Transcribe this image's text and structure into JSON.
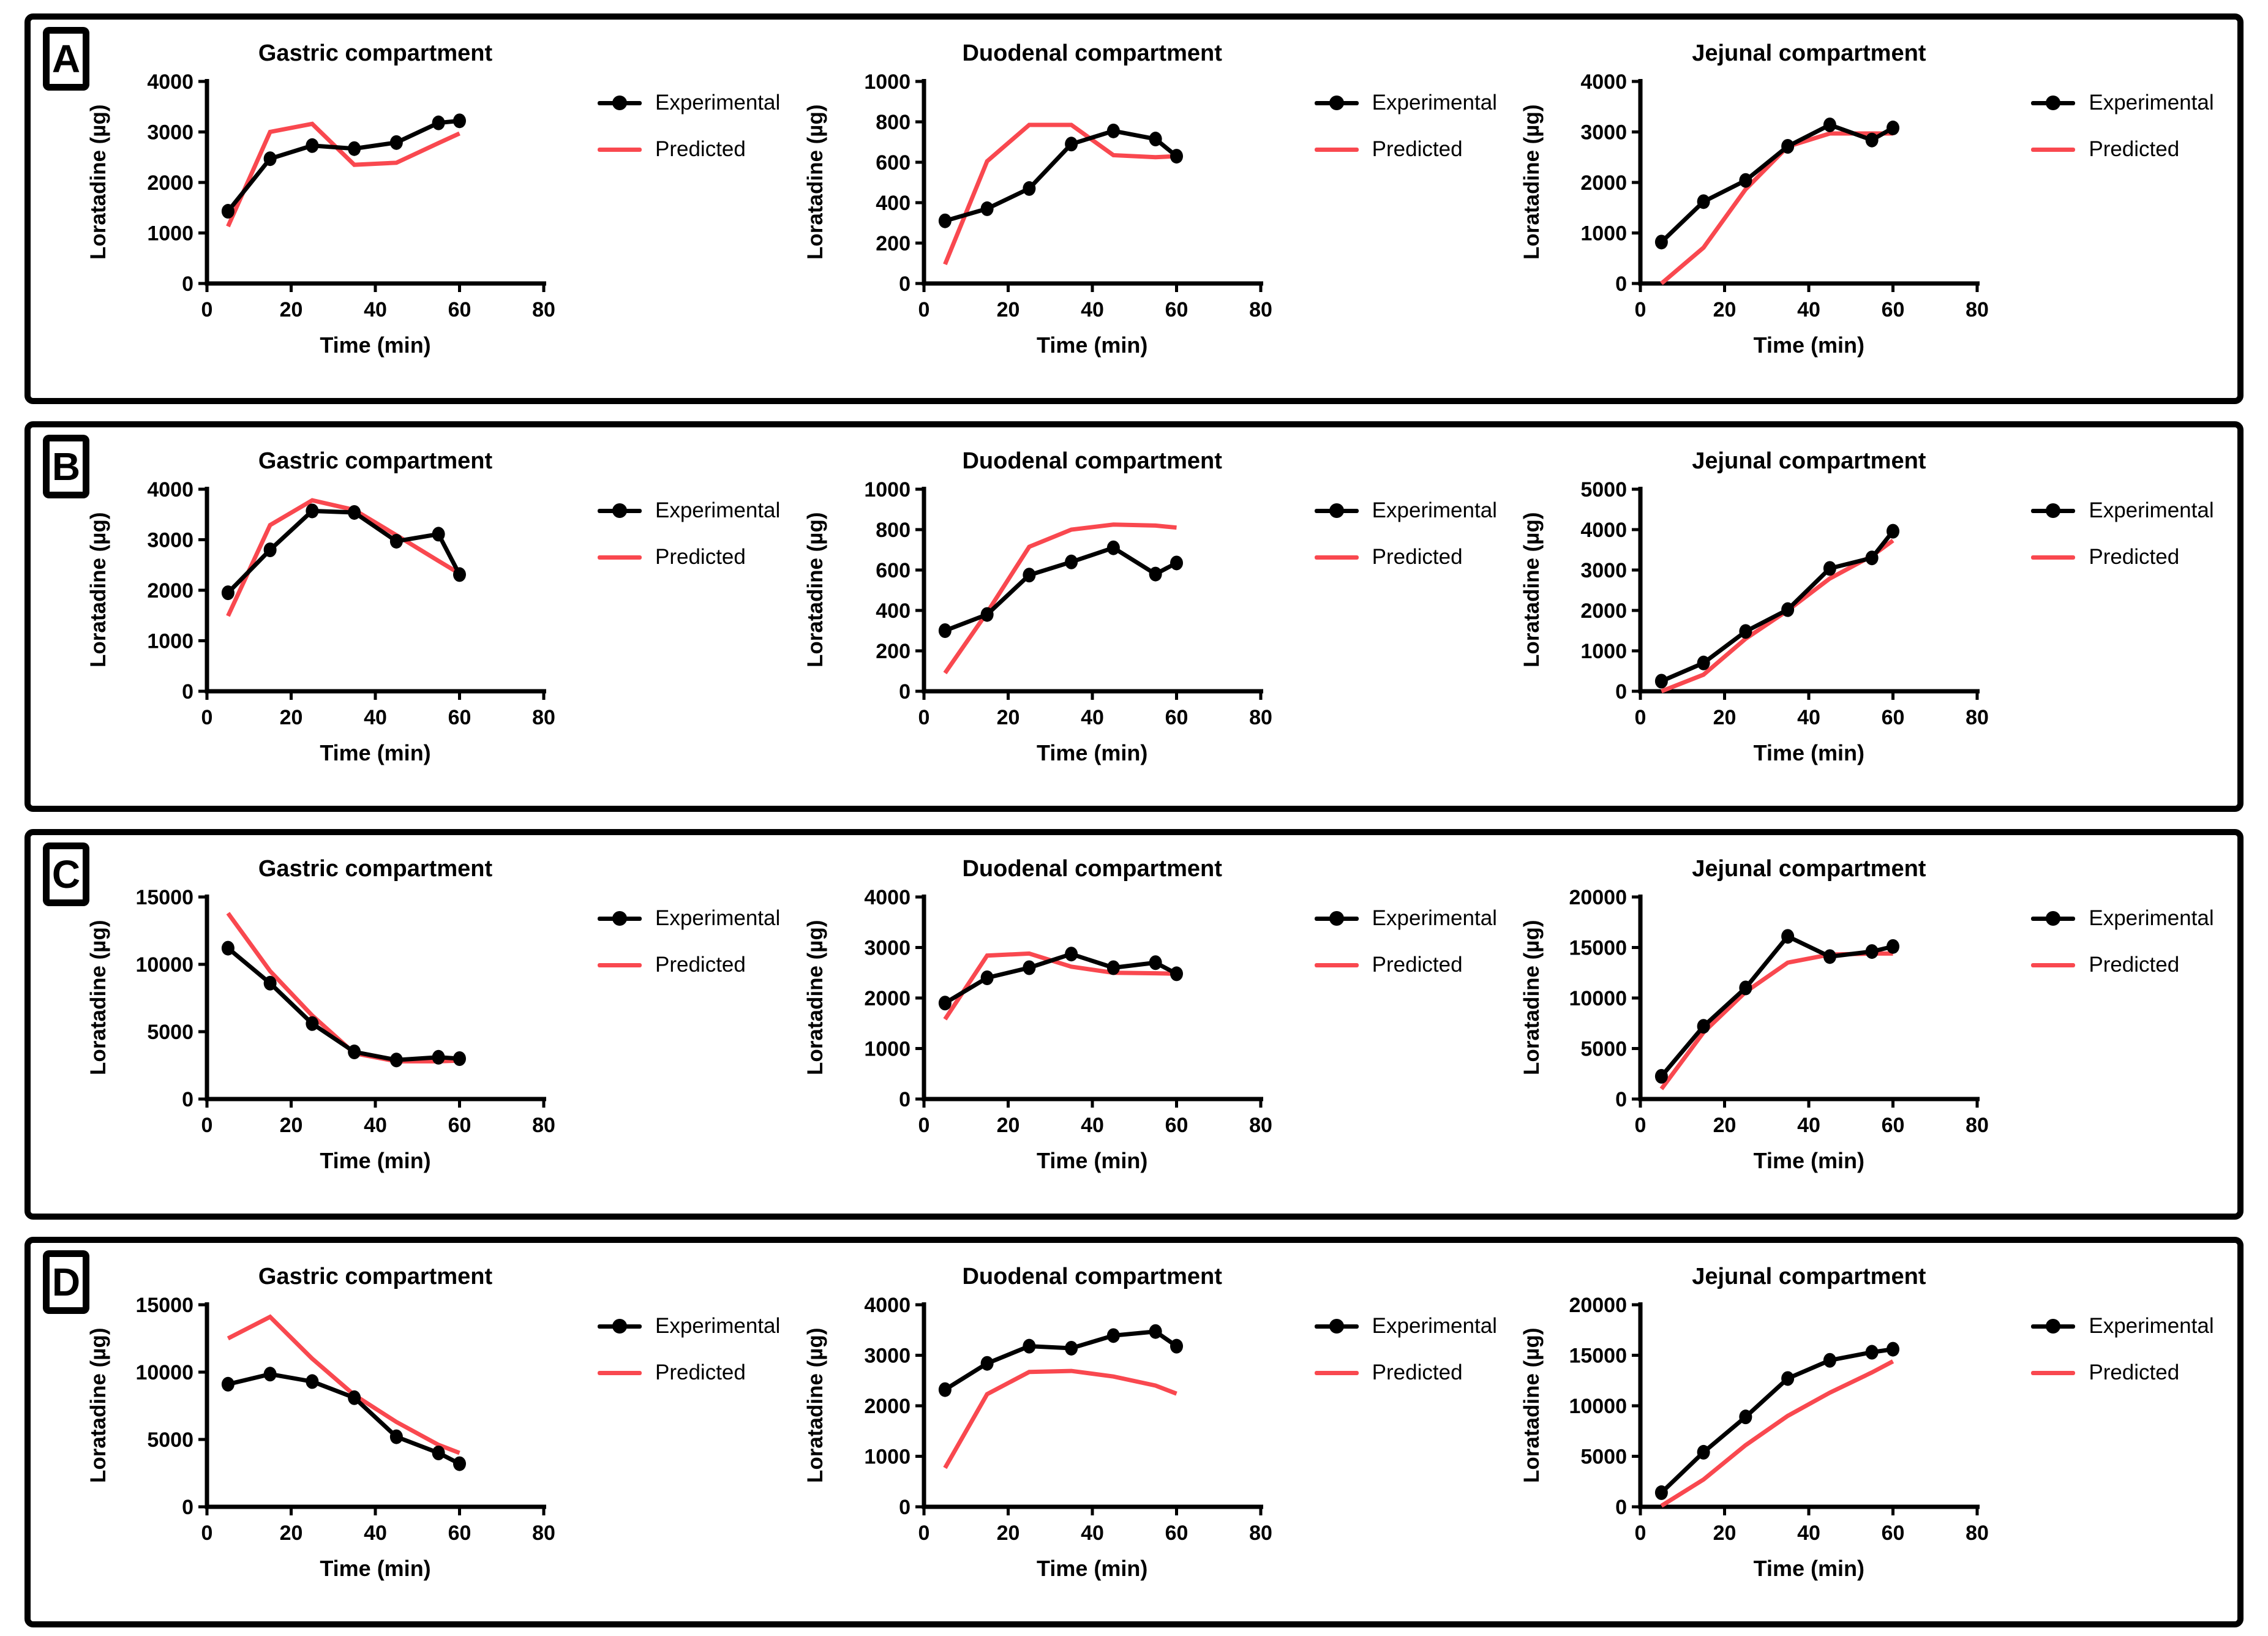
{
  "figure": {
    "background": "#FFFFFF",
    "panel_border_color": "#000000",
    "experimental_color": "#000000",
    "predicted_color": "#F9484F"
  },
  "panels": [
    {
      "label": "A"
    },
    {
      "label": "B"
    },
    {
      "label": "C"
    },
    {
      "label": "D"
    }
  ],
  "chart_data": [
    {
      "type": "line",
      "panel": "A",
      "title": "Gastric compartment",
      "xlabel": "Time (min)",
      "ylabel": "Loratadine (µg)",
      "xlim": [
        0,
        80
      ],
      "xticks": [
        0,
        20,
        40,
        60,
        80
      ],
      "ylim": [
        0,
        4000
      ],
      "yticks": [
        0,
        1000,
        2000,
        3000,
        4000
      ],
      "x": [
        5,
        15,
        25,
        35,
        45,
        55,
        60
      ],
      "legend_position": "right",
      "grid": false,
      "series": [
        {
          "name": "Experimental",
          "color": "#000000",
          "marker": "circle",
          "values": [
            1430,
            2470,
            2730,
            2670,
            2790,
            3180,
            3220
          ]
        },
        {
          "name": "Predicted",
          "color": "#F9484F",
          "marker": "none",
          "values": [
            1130,
            3000,
            3160,
            2350,
            2390,
            2780,
            2970
          ]
        }
      ]
    },
    {
      "type": "line",
      "panel": "A",
      "title": "Duodenal compartment",
      "xlabel": "Time (min)",
      "ylabel": "Loratadine (µg)",
      "xlim": [
        0,
        80
      ],
      "xticks": [
        0,
        20,
        40,
        60,
        80
      ],
      "ylim": [
        0,
        1000
      ],
      "yticks": [
        0,
        200,
        400,
        600,
        800,
        1000
      ],
      "x": [
        5,
        15,
        25,
        35,
        45,
        55,
        60
      ],
      "legend_position": "right",
      "grid": false,
      "series": [
        {
          "name": "Experimental",
          "color": "#000000",
          "marker": "circle",
          "values": [
            310,
            370,
            470,
            690,
            755,
            715,
            630
          ]
        },
        {
          "name": "Predicted",
          "color": "#F9484F",
          "marker": "none",
          "values": [
            95,
            605,
            785,
            785,
            635,
            625,
            630
          ]
        }
      ]
    },
    {
      "type": "line",
      "panel": "A",
      "title": "Jejunal compartment",
      "xlabel": "Time (min)",
      "ylabel": "Loratadine (µg)",
      "xlim": [
        0,
        80
      ],
      "xticks": [
        0,
        20,
        40,
        60,
        80
      ],
      "ylim": [
        0,
        4000
      ],
      "yticks": [
        0,
        1000,
        2000,
        3000,
        4000
      ],
      "x": [
        5,
        15,
        25,
        35,
        45,
        55,
        60
      ],
      "legend_position": "right",
      "grid": false,
      "series": [
        {
          "name": "Experimental",
          "color": "#000000",
          "marker": "circle",
          "values": [
            820,
            1620,
            2040,
            2715,
            3140,
            2840,
            3080
          ]
        },
        {
          "name": "Predicted",
          "color": "#F9484F",
          "marker": "none",
          "values": [
            0,
            710,
            1865,
            2710,
            2970,
            2970,
            2970
          ]
        }
      ]
    },
    {
      "type": "line",
      "panel": "B",
      "title": "Gastric compartment",
      "xlabel": "Time (min)",
      "ylabel": "Loratadine (µg)",
      "xlim": [
        0,
        80
      ],
      "xticks": [
        0,
        20,
        40,
        60,
        80
      ],
      "ylim": [
        0,
        4000
      ],
      "yticks": [
        0,
        1000,
        2000,
        3000,
        4000
      ],
      "x": [
        5,
        15,
        25,
        35,
        45,
        55,
        60
      ],
      "legend_position": "right",
      "grid": false,
      "series": [
        {
          "name": "Experimental",
          "color": "#000000",
          "marker": "circle",
          "values": [
            1950,
            2800,
            3570,
            3540,
            2970,
            3110,
            2310
          ]
        },
        {
          "name": "Predicted",
          "color": "#F9484F",
          "marker": "none",
          "values": [
            1490,
            3290,
            3780,
            3590,
            3090,
            2580,
            2330
          ]
        }
      ]
    },
    {
      "type": "line",
      "panel": "B",
      "title": "Duodenal compartment",
      "xlabel": "Time (min)",
      "ylabel": "Loratadine (µg)",
      "xlim": [
        0,
        80
      ],
      "xticks": [
        0,
        20,
        40,
        60,
        80
      ],
      "ylim": [
        0,
        1000
      ],
      "yticks": [
        0,
        200,
        400,
        600,
        800,
        1000
      ],
      "x": [
        5,
        15,
        25,
        35,
        45,
        55,
        60
      ],
      "legend_position": "right",
      "grid": false,
      "series": [
        {
          "name": "Experimental",
          "color": "#000000",
          "marker": "circle",
          "values": [
            300,
            380,
            575,
            640,
            710,
            580,
            635
          ]
        },
        {
          "name": "Predicted",
          "color": "#F9484F",
          "marker": "none",
          "values": [
            90,
            390,
            715,
            800,
            825,
            820,
            810
          ]
        }
      ]
    },
    {
      "type": "line",
      "panel": "B",
      "title": "Jejunal compartment",
      "xlabel": "Time (min)",
      "ylabel": "Loratadine (µg)",
      "xlim": [
        0,
        80
      ],
      "xticks": [
        0,
        20,
        40,
        60,
        80
      ],
      "ylim": [
        0,
        5000
      ],
      "yticks": [
        0,
        1000,
        2000,
        3000,
        4000,
        5000
      ],
      "x": [
        5,
        15,
        25,
        35,
        45,
        55,
        60
      ],
      "legend_position": "right",
      "grid": false,
      "series": [
        {
          "name": "Experimental",
          "color": "#000000",
          "marker": "circle",
          "values": [
            250,
            700,
            1480,
            2020,
            3040,
            3300,
            3960
          ]
        },
        {
          "name": "Predicted",
          "color": "#F9484F",
          "marker": "none",
          "values": [
            0,
            410,
            1300,
            2000,
            2790,
            3350,
            3730
          ]
        }
      ]
    },
    {
      "type": "line",
      "panel": "C",
      "title": "Gastric compartment",
      "xlabel": "Time (min)",
      "ylabel": "Loratadine (µg)",
      "xlim": [
        0,
        80
      ],
      "xticks": [
        0,
        20,
        40,
        60,
        80
      ],
      "ylim": [
        0,
        15000
      ],
      "yticks": [
        0,
        5000,
        10000,
        15000
      ],
      "x": [
        5,
        15,
        25,
        35,
        45,
        55,
        60
      ],
      "legend_position": "right",
      "grid": false,
      "series": [
        {
          "name": "Experimental",
          "color": "#000000",
          "marker": "circle",
          "values": [
            11200,
            8600,
            5600,
            3500,
            2900,
            3100,
            3000
          ]
        },
        {
          "name": "Predicted",
          "color": "#F9484F",
          "marker": "none",
          "values": [
            13800,
            9500,
            6200,
            3400,
            2800,
            2800,
            2850
          ]
        }
      ]
    },
    {
      "type": "line",
      "panel": "C",
      "title": "Duodenal compartment",
      "xlabel": "Time (min)",
      "ylabel": "Loratadine (µg)",
      "xlim": [
        0,
        80
      ],
      "xticks": [
        0,
        20,
        40,
        60,
        80
      ],
      "ylim": [
        0,
        4000
      ],
      "yticks": [
        0,
        1000,
        2000,
        3000,
        4000
      ],
      "x": [
        5,
        15,
        25,
        35,
        45,
        55,
        60
      ],
      "legend_position": "right",
      "grid": false,
      "series": [
        {
          "name": "Experimental",
          "color": "#000000",
          "marker": "circle",
          "values": [
            1900,
            2400,
            2600,
            2870,
            2600,
            2700,
            2480
          ]
        },
        {
          "name": "Predicted",
          "color": "#F9484F",
          "marker": "none",
          "values": [
            1580,
            2840,
            2880,
            2620,
            2500,
            2490,
            2480
          ]
        }
      ]
    },
    {
      "type": "line",
      "panel": "C",
      "title": "Jejunal compartment",
      "xlabel": "Time (min)",
      "ylabel": "Loratadine (µg)",
      "xlim": [
        0,
        80
      ],
      "xticks": [
        0,
        20,
        40,
        60,
        80
      ],
      "ylim": [
        0,
        20000
      ],
      "yticks": [
        0,
        5000,
        10000,
        15000,
        20000
      ],
      "x": [
        5,
        15,
        25,
        35,
        45,
        55,
        60
      ],
      "legend_position": "right",
      "grid": false,
      "series": [
        {
          "name": "Experimental",
          "color": "#000000",
          "marker": "circle",
          "values": [
            2250,
            7200,
            11000,
            16100,
            14100,
            14600,
            15100
          ]
        },
        {
          "name": "Predicted",
          "color": "#F9484F",
          "marker": "none",
          "values": [
            1000,
            6600,
            10600,
            13500,
            14300,
            14400,
            14400
          ]
        }
      ]
    },
    {
      "type": "line",
      "panel": "D",
      "title": "Gastric compartment",
      "xlabel": "Time (min)",
      "ylabel": "Loratadine (µg)",
      "xlim": [
        0,
        80
      ],
      "xticks": [
        0,
        20,
        40,
        60,
        80
      ],
      "ylim": [
        0,
        15000
      ],
      "yticks": [
        0,
        5000,
        10000,
        15000
      ],
      "x": [
        5,
        15,
        25,
        35,
        45,
        55,
        60
      ],
      "legend_position": "right",
      "grid": false,
      "series": [
        {
          "name": "Experimental",
          "color": "#000000",
          "marker": "circle",
          "values": [
            9100,
            9850,
            9300,
            8100,
            5200,
            4000,
            3200
          ]
        },
        {
          "name": "Predicted",
          "color": "#F9484F",
          "marker": "none",
          "values": [
            12500,
            14100,
            11000,
            8300,
            6300,
            4600,
            4000
          ]
        }
      ]
    },
    {
      "type": "line",
      "panel": "D",
      "title": "Duodenal compartment",
      "xlabel": "Time (min)",
      "ylabel": "Loratadine (µg)",
      "xlim": [
        0,
        80
      ],
      "xticks": [
        0,
        20,
        40,
        60,
        80
      ],
      "ylim": [
        0,
        4000
      ],
      "yticks": [
        0,
        1000,
        2000,
        3000,
        4000
      ],
      "x": [
        5,
        15,
        25,
        35,
        45,
        55,
        60
      ],
      "legend_position": "right",
      "grid": false,
      "series": [
        {
          "name": "Experimental",
          "color": "#000000",
          "marker": "circle",
          "values": [
            2320,
            2840,
            3180,
            3140,
            3390,
            3470,
            3180
          ]
        },
        {
          "name": "Predicted",
          "color": "#F9484F",
          "marker": "none",
          "values": [
            770,
            2230,
            2670,
            2690,
            2580,
            2400,
            2240
          ]
        }
      ]
    },
    {
      "type": "line",
      "panel": "D",
      "title": "Jejunal compartment",
      "xlabel": "Time (min)",
      "ylabel": "Loratadine (µg)",
      "xlim": [
        0,
        80
      ],
      "xticks": [
        0,
        20,
        40,
        60,
        80
      ],
      "ylim": [
        0,
        20000
      ],
      "yticks": [
        0,
        5000,
        10000,
        15000,
        20000
      ],
      "x": [
        5,
        15,
        25,
        35,
        45,
        55,
        60
      ],
      "legend_position": "right",
      "grid": false,
      "series": [
        {
          "name": "Experimental",
          "color": "#000000",
          "marker": "circle",
          "values": [
            1400,
            5400,
            8900,
            12700,
            14500,
            15300,
            15600
          ]
        },
        {
          "name": "Predicted",
          "color": "#F9484F",
          "marker": "none",
          "values": [
            100,
            2700,
            6100,
            9000,
            11300,
            13300,
            14400
          ]
        }
      ]
    }
  ]
}
